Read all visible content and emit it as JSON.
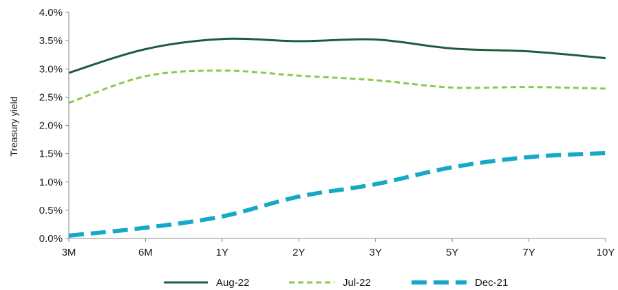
{
  "chart_data": {
    "type": "line",
    "title": "",
    "xlabel": "",
    "ylabel": "Treasury yield",
    "categories": [
      "3M",
      "6M",
      "1Y",
      "2Y",
      "3Y",
      "5Y",
      "7Y",
      "10Y"
    ],
    "ylim": [
      0,
      4.0
    ],
    "y_ticks": [
      0,
      0.5,
      1.0,
      1.5,
      2.0,
      2.5,
      3.0,
      3.5,
      4.0
    ],
    "y_tick_labels": [
      "0.0%",
      "0.5%",
      "1.0%",
      "1.5%",
      "2.0%",
      "2.5%",
      "3.0%",
      "3.5%",
      "4.0%"
    ],
    "grid": false,
    "legend_position": "bottom",
    "series": [
      {
        "name": "Aug-22",
        "values": [
          2.93,
          3.35,
          3.53,
          3.49,
          3.52,
          3.36,
          3.31,
          3.19
        ],
        "color": "#1e5c3a",
        "style": "solid"
      },
      {
        "name": "Jul-22",
        "values": [
          2.4,
          2.87,
          2.97,
          2.88,
          2.8,
          2.67,
          2.68,
          2.65
        ],
        "color": "#8cc84b",
        "style": "dashed"
      },
      {
        "name": "Dec-21",
        "values": [
          0.05,
          0.19,
          0.39,
          0.74,
          0.96,
          1.26,
          1.44,
          1.51
        ],
        "color": "#16a9c7",
        "style": "dashed-thick"
      }
    ]
  }
}
